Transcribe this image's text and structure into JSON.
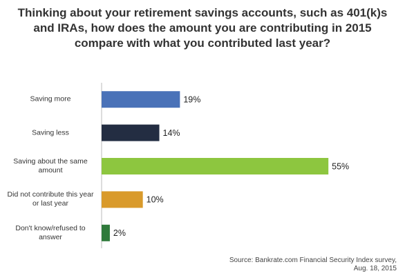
{
  "chart_data": {
    "type": "hbar",
    "title": "Thinking about your retirement savings accounts, such as 401(k)s and IRAs, how does the amount you are contributing in 2015 compare with what you contributed last year?",
    "categories": [
      "Saving more",
      "Saving less",
      "Saving about the same amount",
      "Did not contribute this year or last year",
      "Don't know/refused to answer"
    ],
    "values": [
      19,
      14,
      55,
      10,
      2
    ],
    "value_labels": [
      "19%",
      "14%",
      "55%",
      "10%",
      "2%"
    ],
    "colors": [
      "#4a72b8",
      "#232d42",
      "#8dc63f",
      "#d99a2b",
      "#2f7a3b"
    ],
    "xlim": [
      0,
      60
    ],
    "source": "Source: Bankrate.com Financial Security Index survey, Aug. 18, 2015"
  }
}
